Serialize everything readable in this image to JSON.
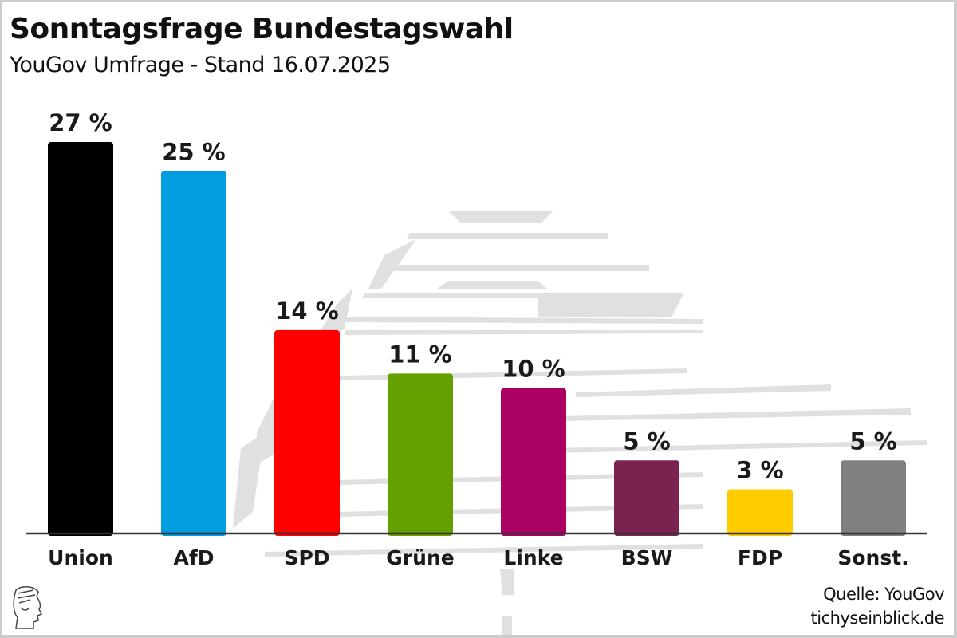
{
  "header": {
    "title": "Sonntagsfrage Bundestagswahl",
    "subtitle": "YouGov Umfrage - Stand 16.07.2025"
  },
  "footer": {
    "source": "Quelle: YouGov",
    "site": "tichyseinblick.de",
    "logo_icon": "hermes-head-logo-icon"
  },
  "chart_data": {
    "type": "bar",
    "title": "Sonntagsfrage Bundestagswahl",
    "subtitle": "YouGov Umfrage - Stand 16.07.2025",
    "xlabel": "",
    "ylabel": "",
    "ylim": [
      0,
      27
    ],
    "grid": false,
    "legend": "none",
    "categories": [
      "Union",
      "AfD",
      "SPD",
      "Grüne",
      "Linke",
      "BSW",
      "FDP",
      "Sonst."
    ],
    "values": [
      27,
      25,
      14,
      11,
      10,
      5,
      3,
      5
    ],
    "value_labels": [
      "27 %",
      "25 %",
      "14 %",
      "11 %",
      "10 %",
      "5 %",
      "3 %",
      "5 %"
    ],
    "colors": [
      "#000000",
      "#009ee0",
      "#ff0000",
      "#64a000",
      "#aa0064",
      "#7a2350",
      "#ffcc00",
      "#808080"
    ],
    "unit": "%"
  }
}
